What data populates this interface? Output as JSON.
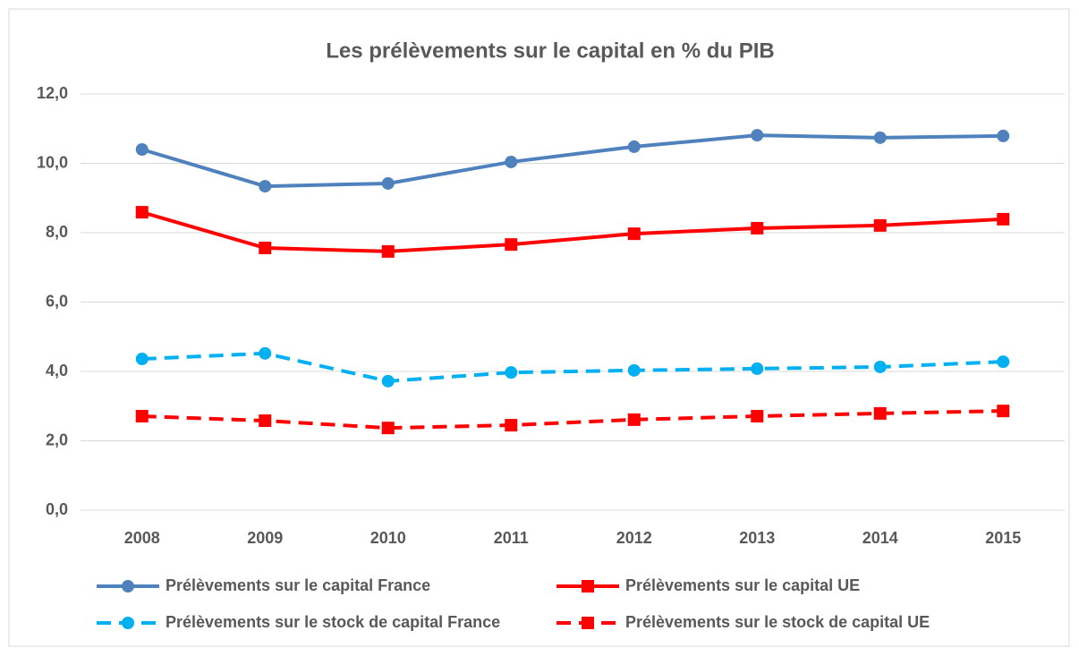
{
  "chart_data": {
    "type": "line",
    "title": "Les prélèvements sur le capital en % du PIB",
    "categories": [
      "2008",
      "2009",
      "2010",
      "2011",
      "2012",
      "2013",
      "2014",
      "2015"
    ],
    "series": [
      {
        "name": "Prélèvements sur le capital France",
        "color": "#4f81bd",
        "marker": "circle",
        "dashed": false,
        "values": [
          10.4,
          9.34,
          9.42,
          10.04,
          10.48,
          10.81,
          10.74,
          10.79
        ]
      },
      {
        "name": "Prélèvements sur le capital UE",
        "color": "#ff0000",
        "marker": "square",
        "dashed": false,
        "values": [
          8.59,
          7.56,
          7.46,
          7.66,
          7.97,
          8.13,
          8.21,
          8.39
        ]
      },
      {
        "name": "Prélèvements sur le stock de capital France",
        "color": "#00b0f0",
        "marker": "circle",
        "dashed": true,
        "values": [
          4.36,
          4.52,
          3.72,
          3.97,
          4.03,
          4.08,
          4.13,
          4.28
        ]
      },
      {
        "name": "Prélèvements sur le stock de capital UE",
        "color": "#ff0000",
        "marker": "square",
        "dashed": true,
        "values": [
          2.71,
          2.58,
          2.37,
          2.45,
          2.61,
          2.71,
          2.79,
          2.86
        ]
      }
    ],
    "ylim": [
      0,
      12
    ],
    "yticks": [
      {
        "value": 0,
        "label": "0,0"
      },
      {
        "value": 2,
        "label": "2,0"
      },
      {
        "value": 4,
        "label": "4,0"
      },
      {
        "value": 6,
        "label": "6,0"
      },
      {
        "value": 8,
        "label": "8,0"
      },
      {
        "value": 10,
        "label": "10,0"
      },
      {
        "value": 12,
        "label": "12,0"
      }
    ],
    "grid": true,
    "legend": "bottom"
  }
}
